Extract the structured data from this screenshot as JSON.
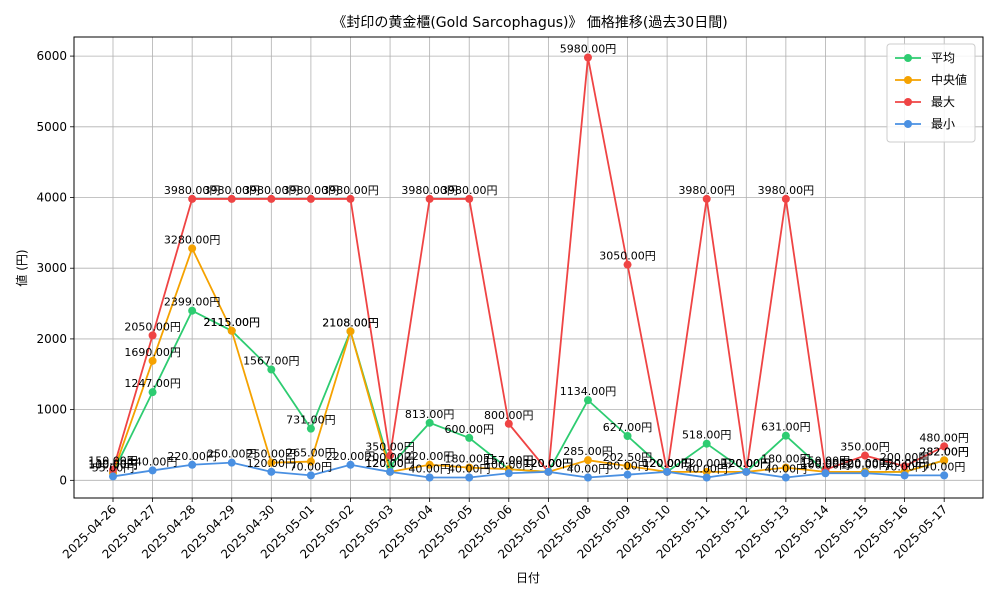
{
  "chart_data": {
    "type": "line",
    "title": "《封印の黄金櫃(Gold Sarcophagus)》 価格推移(過去30日間)",
    "xlabel": "日付",
    "ylabel": "値 (円)",
    "ylim": [
      -250,
      6270
    ],
    "yticks": [
      0,
      1000,
      2000,
      3000,
      4000,
      5000,
      6000
    ],
    "grid": true,
    "legend_position": "top-right",
    "label_suffix": "円",
    "categories": [
      "2025-04-26",
      "2025-04-27",
      "2025-04-28",
      "2025-04-29",
      "2025-04-30",
      "2025-05-01",
      "2025-05-02",
      "2025-05-03",
      "2025-05-04",
      "2025-05-05",
      "2025-05-06",
      "2025-05-07",
      "2025-05-08",
      "2025-05-09",
      "2025-05-10",
      "2025-05-11",
      "2025-05-12",
      "2025-05-13",
      "2025-05-14",
      "2025-05-15",
      "2025-05-16",
      "2025-05-17"
    ],
    "series": [
      {
        "name": "平均",
        "color": "#2ecc71",
        "values": [
          110,
          1247,
          2399,
          2115,
          1567,
          731,
          2108,
          200,
          813,
          600,
          157,
          120,
          1134,
          627,
          120,
          518,
          120,
          631,
          120,
          120,
          120,
          282
        ]
      },
      {
        "name": "中央値",
        "color": "#f5a200",
        "values": [
          100,
          1690,
          3280,
          2115,
          250,
          265,
          2108,
          120,
          220,
          180,
          157,
          120,
          285,
          202.5,
          120,
          120,
          120,
          180,
          120,
          120,
          120,
          282
        ]
      },
      {
        "name": "最大",
        "color": "#ef4444",
        "values": [
          150,
          2050,
          3980,
          3980,
          3980,
          3980,
          3980,
          350,
          3980,
          3980,
          800,
          120,
          5980,
          3050,
          120,
          3980,
          120,
          3980,
          150,
          350,
          200,
          480
        ]
      },
      {
        "name": "最小",
        "color": "#4a90e2",
        "values": [
          55,
          140,
          220,
          250,
          120,
          70,
          220,
          120,
          40,
          40,
          100,
          120,
          40,
          80,
          120,
          40,
          120,
          40,
          100,
          100,
          70,
          70
        ]
      }
    ]
  }
}
